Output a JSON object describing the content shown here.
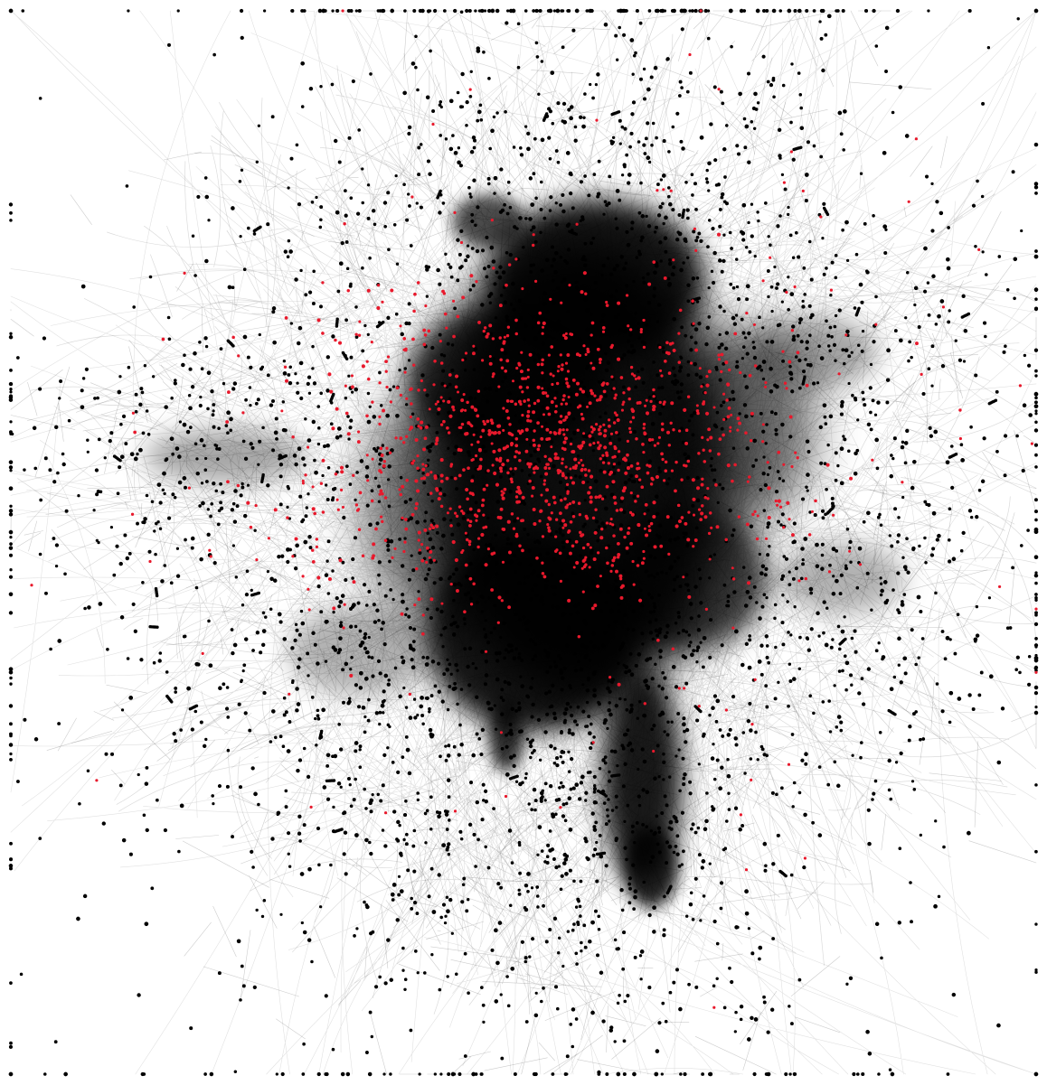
{
  "figure": {
    "kind": "network-graph",
    "background_color": "#ffffff",
    "edge_color": "#000000",
    "node_colors": {
      "default": "#000000",
      "highlighted": "#e8192c"
    }
  }
}
